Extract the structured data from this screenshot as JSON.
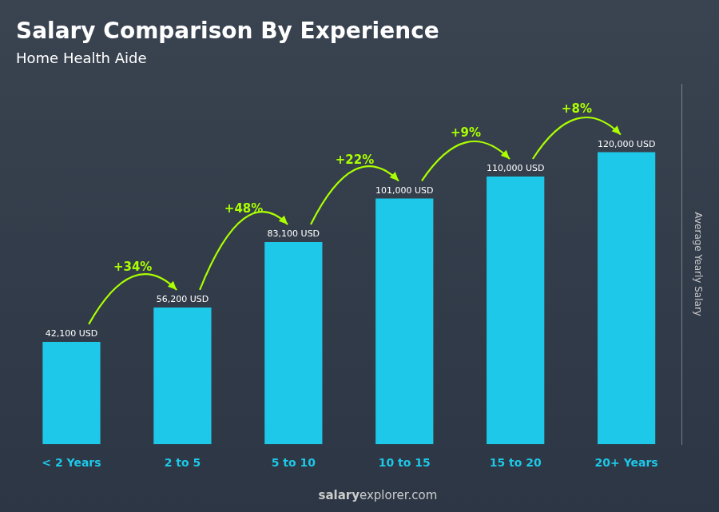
{
  "chart_data": {
    "type": "bar",
    "title": "Salary Comparison By Experience",
    "subtitle": "Home Health Aide",
    "categories": [
      "< 2 Years",
      "2 to 5",
      "5 to 10",
      "10 to 15",
      "15 to 20",
      "20+ Years"
    ],
    "values": [
      42100,
      56200,
      83100,
      101000,
      110000,
      120000
    ],
    "value_labels": [
      "42,100 USD",
      "56,200 USD",
      "83,100 USD",
      "101,000 USD",
      "110,000 USD",
      "120,000 USD"
    ],
    "data_labels": true,
    "annotations": [
      "+34%",
      "+48%",
      "+22%",
      "+9%",
      "+8%"
    ],
    "ylabel": "Average Yearly Salary",
    "footer": [
      "salary",
      "explorer.com"
    ],
    "color": "#1ec8e8",
    "ylim": [
      0,
      148000
    ],
    "tick_labels": "x",
    "grid": false
  }
}
